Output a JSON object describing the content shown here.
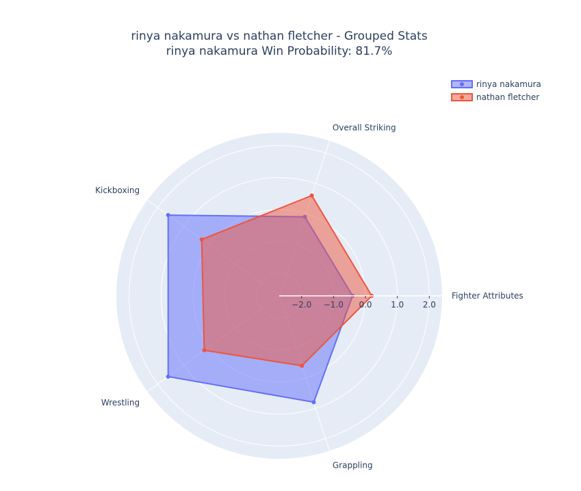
{
  "chart_data": {
    "type": "radar",
    "title": "rinya nakamura vs nathan fletcher - Grouped Stats",
    "subtitle": "rinya nakamura Win Probability: 81.7%",
    "categories": [
      "Fighter Attributes",
      "Overall Striking",
      "Kickboxing",
      "Wrestling",
      "Grappling"
    ],
    "radial_range": [
      -2.7,
      2.4
    ],
    "radial_ticks": [
      -2.0,
      -1.0,
      0.0,
      1.0,
      2.0
    ],
    "radial_tick_labels": [
      "−2.0",
      "−1.0",
      "0.0",
      "1.0",
      "2.0"
    ],
    "legend_placement": "top-right",
    "series": [
      {
        "name": "rinya nakamura",
        "color": "#636efa",
        "fill_color": "rgba(99,110,250,0.5)",
        "values": [
          -0.4,
          -0.1,
          1.6,
          1.6,
          0.8
        ]
      },
      {
        "name": "nathan fletcher",
        "color": "#ef553b",
        "fill_color": "rgba(239,85,59,0.5)",
        "values": [
          0.2,
          0.6,
          0.3,
          0.2,
          -0.4
        ]
      }
    ]
  }
}
